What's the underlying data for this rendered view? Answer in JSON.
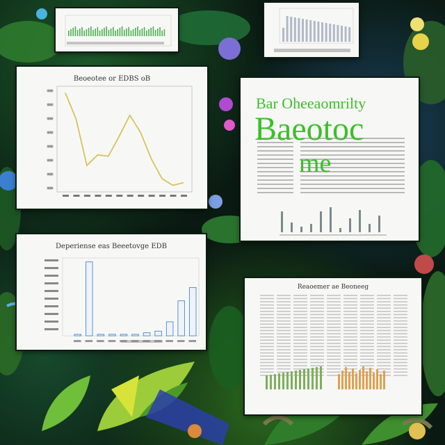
{
  "scene": {
    "background_colors": [
      "#0a1a12",
      "#1d5a2a",
      "#2c6b1e",
      "#1a3f5c"
    ],
    "accent_green": "#3cbf2a",
    "line_color": "#d8c25a",
    "bar_blue": "#5b8fc9",
    "bar_orange": "#e0a050"
  },
  "cards": {
    "line_card": {
      "title": "Beoeotee or EDBS oB",
      "chart_data": {
        "type": "line",
        "x": [
          1,
          2,
          3,
          4,
          5,
          6,
          7,
          8,
          9,
          10,
          11,
          12
        ],
        "values": [
          95,
          75,
          40,
          48,
          47,
          62,
          78,
          65,
          45,
          30,
          25,
          27
        ],
        "ylim": [
          20,
          100
        ]
      }
    },
    "bar_card": {
      "title": "Deperiense eas Beeetovge EDB",
      "chart_data": {
        "type": "bar",
        "values": [
          2,
          95,
          2,
          2,
          2,
          2,
          4,
          6,
          18,
          45,
          62
        ],
        "ylim": [
          0,
          100
        ]
      }
    },
    "poster_card": {
      "top_line": "Bar Oheeaomrilty",
      "word1": "Baeotoc",
      "word2": "me"
    },
    "table_card": {
      "title": "Reaoemer ae Beoneeg"
    }
  }
}
